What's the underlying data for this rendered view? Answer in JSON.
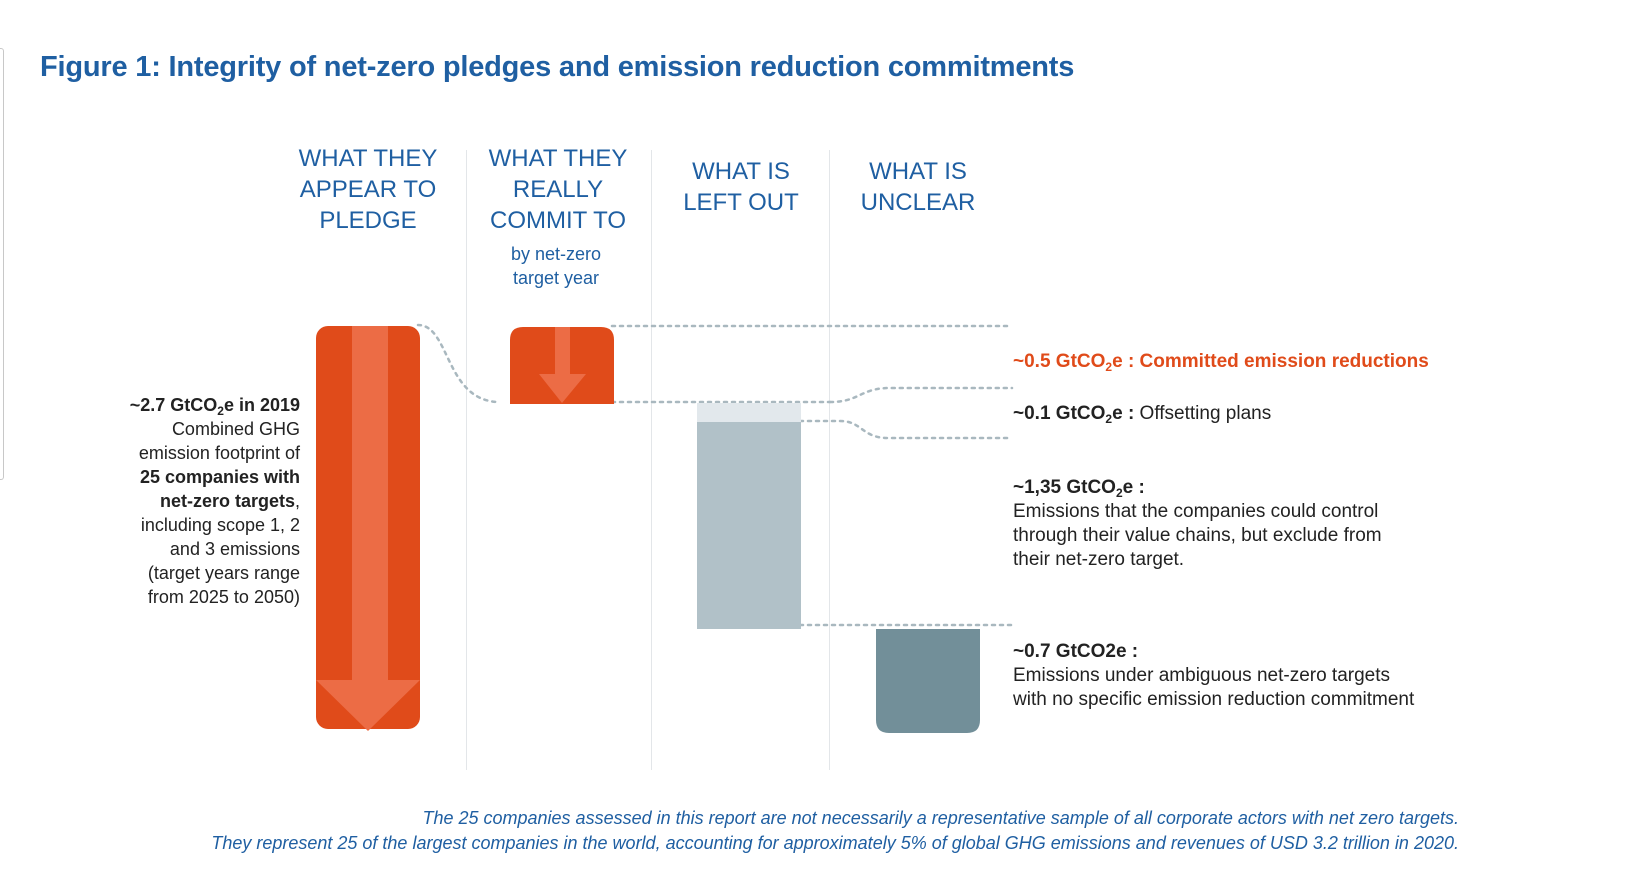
{
  "title": "Figure 1: Integrity of net-zero pledges and emission reduction commitments",
  "columns": [
    {
      "lines": [
        "WHAT THEY",
        "APPEAR TO",
        "PLEDGE"
      ]
    },
    {
      "lines": [
        "WHAT THEY",
        "REALLY",
        "COMMIT TO"
      ],
      "sub": [
        "by net-zero",
        "target year"
      ]
    },
    {
      "lines": [
        "WHAT IS",
        "LEFT OUT"
      ]
    },
    {
      "lines": [
        "WHAT IS",
        "UNCLEAR"
      ]
    }
  ],
  "left_note": {
    "value_pre": "~2.7 GtCO",
    "value_sub": "2",
    "value_post": "e in 2019",
    "lines": [
      "Combined GHG",
      "emission footprint of"
    ],
    "bold_lines": [
      "25 companies with",
      "net-zero targets"
    ],
    "bold_suffix": ",",
    "tail_lines": [
      "including scope 1, 2",
      "and 3 emissions",
      "(target years range",
      "from 2025 to 2050)"
    ]
  },
  "labels": {
    "committed": {
      "value_pre": "~0.5 GtCO",
      "sub": "2",
      "value_post": "e : Committed emission reductions"
    },
    "offsetting": {
      "value_pre": "~0.1 GtCO",
      "sub": "2",
      "value_post": "e : ",
      "text": "Offsetting plans"
    },
    "left_out": {
      "value_pre": "~1,35 GtCO",
      "sub": "2",
      "value_post": "e :",
      "lines": [
        "Emissions that the companies could control",
        "through their value chains, but exclude from",
        "their net-zero target."
      ]
    },
    "unclear": {
      "value": "~0.7 GtCO2e :",
      "lines": [
        "Emissions under ambiguous net-zero targets",
        "with no specific emission reduction commitment"
      ]
    }
  },
  "footnote": [
    "The 25 companies assessed in this report are not necessarily a representative sample of all corporate actors with net zero targets.",
    "They represent 25 of the largest companies in the world, accounting for approximately 5% of global GHG emissions and revenues of USD 3.2 trillion in 2020."
  ],
  "chart_data": {
    "type": "waterfall",
    "unit": "GtCO2e",
    "segments": [
      {
        "column": "WHAT THEY APPEAR TO PLEDGE",
        "value": 2.7,
        "color": "#e04b1a"
      },
      {
        "column": "WHAT THEY REALLY COMMIT TO",
        "value": 0.5,
        "color": "#e04b1a"
      },
      {
        "column": "WHAT IS LEFT OUT",
        "value": 0.1,
        "color": "#e2e8ec"
      },
      {
        "column": "WHAT IS LEFT OUT",
        "value": 1.35,
        "color": "#b1c1c8"
      },
      {
        "column": "WHAT IS UNCLEAR",
        "value": 0.7,
        "color": "#728f99"
      }
    ],
    "colors": {
      "orange": "#e04b1a",
      "orange_light": "#ec6c45",
      "grey_light": "#b1c1c8",
      "grey_dark": "#728f99",
      "offset": "#e2e8ec",
      "connector": "#a9b8bf"
    }
  }
}
